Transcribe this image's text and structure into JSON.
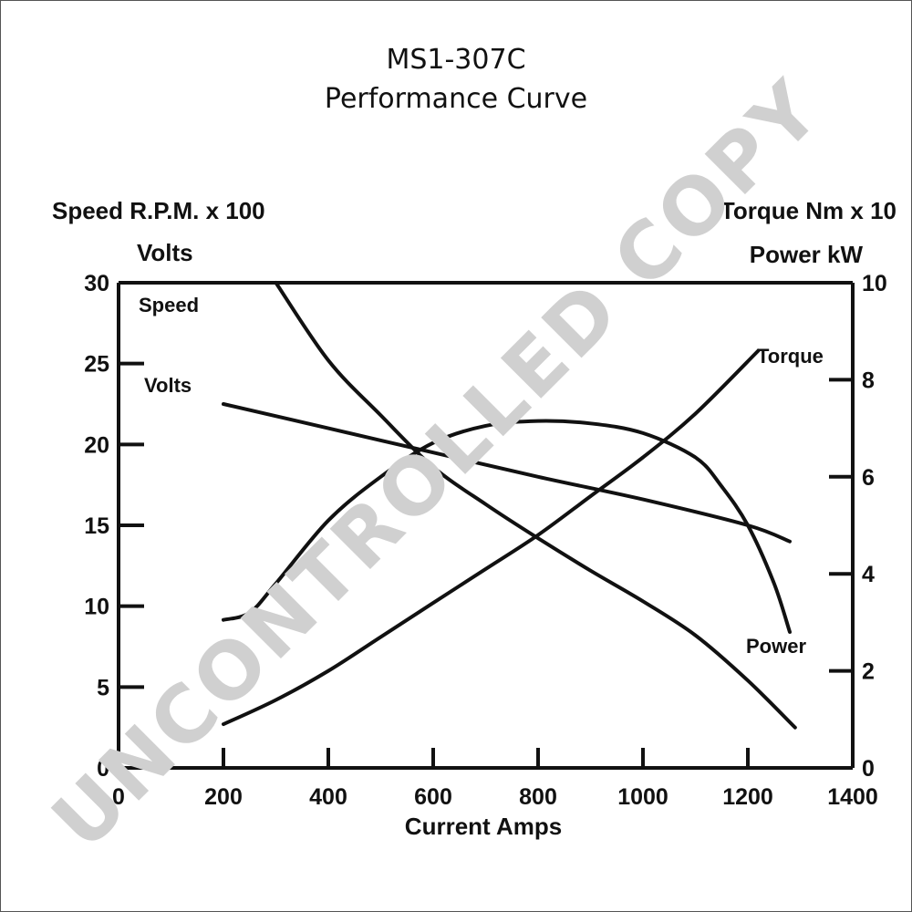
{
  "chart_data": {
    "type": "line",
    "title": "MS1-307C",
    "subtitle": "Performance Curve",
    "xlabel": "Current Amps",
    "ylabel_left": [
      "Speed R.P.M. x 100",
      "Volts"
    ],
    "ylabel_right": [
      "Torque Nm x 10",
      "Power kW"
    ],
    "xlim": [
      0,
      1400
    ],
    "ylim_left": [
      0,
      30
    ],
    "ylim_right": [
      0,
      10
    ],
    "x_ticks": [
      "0",
      "200",
      "400",
      "600",
      "800",
      "1000",
      "1200",
      "1400"
    ],
    "y_left_ticks": [
      "0",
      "5",
      "10",
      "15",
      "20",
      "25",
      "30"
    ],
    "y_right_ticks": [
      "0",
      "2",
      "4",
      "6",
      "8",
      "10"
    ],
    "grid": false,
    "series": [
      {
        "name": "Speed",
        "axis": "left",
        "x": [
          300,
          400,
          500,
          600,
          700,
          800,
          900,
          1000,
          1100,
          1200,
          1290
        ],
        "y": [
          30,
          25.2,
          21.8,
          18.6,
          16.3,
          14.2,
          12.2,
          10.3,
          8.2,
          5.4,
          2.5
        ]
      },
      {
        "name": "Volts",
        "axis": "left",
        "x": [
          200,
          400,
          600,
          800,
          1000,
          1200,
          1280
        ],
        "y": [
          22.5,
          21.0,
          19.5,
          18.0,
          16.6,
          15.0,
          14.0
        ]
      },
      {
        "name": "Torque",
        "axis": "right",
        "x": [
          200,
          300,
          400,
          500,
          600,
          700,
          800,
          900,
          1000,
          1100,
          1220
        ],
        "y": [
          0.9,
          1.4,
          2.0,
          2.7,
          3.4,
          4.1,
          4.8,
          5.6,
          6.4,
          7.3,
          8.6
        ]
      },
      {
        "name": "Power",
        "axis": "right",
        "x": [
          200,
          250,
          300,
          400,
          500,
          600,
          700,
          800,
          900,
          1000,
          1100,
          1150,
          1200,
          1250,
          1280
        ],
        "y": [
          3.05,
          3.2,
          3.8,
          5.1,
          6.0,
          6.7,
          7.05,
          7.15,
          7.1,
          6.9,
          6.4,
          5.8,
          5.0,
          3.8,
          2.8
        ]
      }
    ],
    "series_labels": [
      "Speed",
      "Volts",
      "Torque",
      "Power"
    ],
    "watermark": "UNCONTROLLED COPY"
  }
}
